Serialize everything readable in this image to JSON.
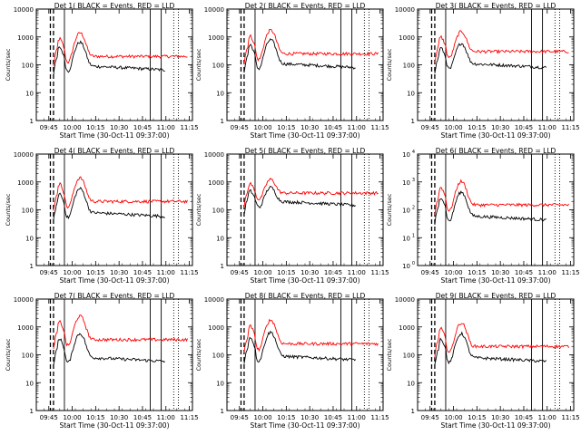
{
  "figure": {
    "xlabel": "Start Time (30-Oct-11 09:37:00)",
    "ylabel": "Counts/sec",
    "colors": {
      "events": "#000000",
      "lld": "#ff0000",
      "axes": "#000000",
      "background": "#ffffff"
    }
  },
  "chart_data": [
    {
      "type": "line",
      "title": "Det 1( BLACK = Events, RED = LLD",
      "tick_format": "plain",
      "baseline": {
        "black": 90,
        "red": 200
      },
      "peak_scale": 1.0,
      "vlines": {
        "dashed": [
          "09:46",
          "09:48"
        ],
        "solid": [
          "09:55",
          "10:50",
          "10:57"
        ],
        "dotted": [
          "11:05",
          "11:08"
        ]
      },
      "series": [
        {
          "name": "BLACK = Events",
          "color": "#000000"
        },
        {
          "name": "RED = LLD",
          "color": "#ff0000"
        }
      ]
    },
    {
      "type": "line",
      "title": "Det 2( BLACK = Events, RED = LLD",
      "tick_format": "plain",
      "baseline": {
        "black": 110,
        "red": 250
      },
      "peak_scale": 1.0,
      "vlines": {
        "dashed": [
          "09:46",
          "09:48"
        ],
        "solid": [
          "09:55",
          "10:50",
          "10:57"
        ],
        "dotted": [
          "11:05",
          "11:08"
        ]
      },
      "series": [
        {
          "name": "BLACK = Events",
          "color": "#000000"
        },
        {
          "name": "RED = LLD",
          "color": "#ff0000"
        }
      ]
    },
    {
      "type": "line",
      "title": "Det 3( BLACK = Events, RED = LLD",
      "tick_format": "plain",
      "baseline": {
        "black": 110,
        "red": 300
      },
      "peak_scale": 0.7,
      "vlines": {
        "dashed": [
          "09:46",
          "09:48"
        ],
        "solid": [
          "09:55",
          "10:50",
          "10:57"
        ],
        "dotted": [
          "11:05",
          "11:08"
        ]
      },
      "series": [
        {
          "name": "BLACK = Events",
          "color": "#000000"
        },
        {
          "name": "RED = LLD",
          "color": "#ff0000"
        }
      ]
    },
    {
      "type": "line",
      "title": "Det 4( BLACK = Events, RED = LLD",
      "tick_format": "plain",
      "baseline": {
        "black": 80,
        "red": 200
      },
      "peak_scale": 1.0,
      "vlines": {
        "dashed": [
          "09:46",
          "09:48"
        ],
        "solid": [
          "09:55",
          "10:50",
          "10:57"
        ],
        "dotted": [
          "11:05",
          "11:08"
        ]
      },
      "series": [
        {
          "name": "BLACK = Events",
          "color": "#000000"
        },
        {
          "name": "RED = LLD",
          "color": "#ff0000"
        }
      ]
    },
    {
      "type": "line",
      "title": "Det 5( BLACK = Events, RED = LLD",
      "tick_format": "plain",
      "baseline": {
        "black": 200,
        "red": 400
      },
      "peak_scale": 0.35,
      "vlines": {
        "dashed": [
          "09:46",
          "09:48"
        ],
        "solid": [
          "09:55",
          "10:50",
          "10:57"
        ],
        "dotted": [
          "11:05",
          "11:08"
        ]
      },
      "series": [
        {
          "name": "BLACK = Events",
          "color": "#000000"
        },
        {
          "name": "RED = LLD",
          "color": "#ff0000"
        }
      ]
    },
    {
      "type": "line",
      "title": "Det 6( BLACK = Events, RED = LLD",
      "tick_format": "power",
      "baseline": {
        "black": 60,
        "red": 150
      },
      "peak_scale": 1.0,
      "vlines": {
        "dashed": [
          "09:46",
          "09:48"
        ],
        "solid": [
          "09:55",
          "10:50",
          "10:57"
        ],
        "dotted": [
          "11:05",
          "11:08"
        ]
      },
      "series": [
        {
          "name": "BLACK = Events",
          "color": "#000000"
        },
        {
          "name": "RED = LLD",
          "color": "#ff0000"
        }
      ]
    },
    {
      "type": "line",
      "title": "Det 7( BLACK = Events, RED = LLD",
      "tick_format": "plain",
      "baseline": {
        "black": 80,
        "red": 350
      },
      "peak_scale": 1.0,
      "vlines": {
        "dashed": [
          "09:46",
          "09:48"
        ],
        "solid": [
          "09:55",
          "10:50",
          "10:57"
        ],
        "dotted": [
          "11:05",
          "11:08"
        ]
      },
      "series": [
        {
          "name": "BLACK = Events",
          "color": "#000000"
        },
        {
          "name": "RED = LLD",
          "color": "#ff0000"
        }
      ]
    },
    {
      "type": "line",
      "title": "Det 8( BLACK = Events, RED = LLD",
      "tick_format": "plain",
      "baseline": {
        "black": 90,
        "red": 250
      },
      "peak_scale": 1.0,
      "vlines": {
        "dashed": [
          "09:46",
          "09:48"
        ],
        "solid": [
          "09:55",
          "10:50",
          "10:57"
        ],
        "dotted": [
          "11:05",
          "11:08"
        ]
      },
      "series": [
        {
          "name": "BLACK = Events",
          "color": "#000000"
        },
        {
          "name": "RED = LLD",
          "color": "#ff0000"
        }
      ]
    },
    {
      "type": "line",
      "title": "Det 9( BLACK = Events, RED = LLD",
      "tick_format": "plain",
      "baseline": {
        "black": 80,
        "red": 200
      },
      "peak_scale": 1.0,
      "vlines": {
        "dashed": [
          "09:46",
          "09:48"
        ],
        "solid": [
          "09:55",
          "10:50",
          "10:57"
        ],
        "dotted": [
          "11:05",
          "11:08"
        ]
      },
      "series": [
        {
          "name": "BLACK = Events",
          "color": "#000000"
        },
        {
          "name": "RED = LLD",
          "color": "#ff0000"
        }
      ]
    }
  ],
  "axes": {
    "x_ticks": [
      "09:45",
      "10:00",
      "10:15",
      "10:30",
      "10:45",
      "11:00",
      "11:15"
    ],
    "x_range": [
      "09:37",
      "11:17"
    ],
    "y_range": [
      1,
      10000
    ],
    "y_scale": "log",
    "y_ticks_plain": [
      "1",
      "10",
      "100",
      "1000",
      "10000"
    ],
    "y_ticks_power": [
      "10",
      "10",
      "10",
      "10",
      "10"
    ],
    "y_ticks_power_exp": [
      "0",
      "1",
      "2",
      "3",
      "4"
    ]
  }
}
